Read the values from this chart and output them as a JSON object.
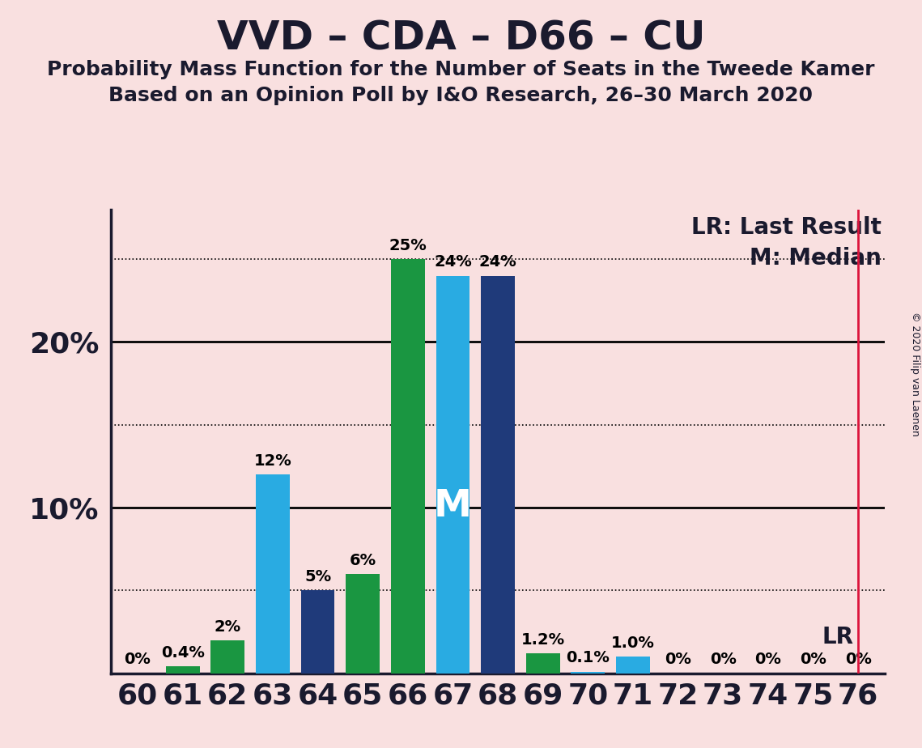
{
  "title": "VVD – CDA – D66 – CU",
  "subtitle1": "Probability Mass Function for the Number of Seats in the Tweede Kamer",
  "subtitle2": "Based on an Opinion Poll by I&O Research, 26–30 March 2020",
  "copyright": "© 2020 Filip van Laenen",
  "seats": [
    60,
    61,
    62,
    63,
    64,
    65,
    66,
    67,
    68,
    69,
    70,
    71,
    72,
    73,
    74,
    75,
    76
  ],
  "values": [
    0.0,
    0.4,
    2.0,
    12.0,
    5.0,
    6.0,
    25.0,
    24.0,
    24.0,
    1.2,
    0.1,
    1.0,
    0.0,
    0.0,
    0.0,
    0.0,
    0.0
  ],
  "labels": [
    "0%",
    "0.4%",
    "2%",
    "12%",
    "5%",
    "6%",
    "25%",
    "24%",
    "24%",
    "1.2%",
    "0.1%",
    "1.0%",
    "0%",
    "0%",
    "0%",
    "0%",
    "0%"
  ],
  "colors": [
    "#1a9641",
    "#1a9641",
    "#1a9641",
    "#29abe2",
    "#1f3a7a",
    "#1a9641",
    "#1a9641",
    "#29abe2",
    "#1f3a7a",
    "#1a9641",
    "#29abe2",
    "#29abe2",
    "#1f3a7a",
    "#1f3a7a",
    "#1f3a7a",
    "#1f3a7a",
    "#1f3a7a"
  ],
  "median_seat": 67,
  "last_result_seat": 76,
  "background_color": "#f9e0e0",
  "ylim": [
    0,
    28
  ],
  "xlim": [
    59.4,
    76.6
  ],
  "legend_lr": "LR: Last Result",
  "legend_m": "M: Median",
  "median_label": "M",
  "lr_label": "LR",
  "title_fontsize": 36,
  "subtitle_fontsize": 18,
  "bar_label_fontsize": 14,
  "legend_fontsize": 20,
  "ytick_fontsize": 26,
  "xtick_fontsize": 26,
  "dotted_grid_levels": [
    5,
    15,
    25
  ],
  "solid_grid_levels": [
    10,
    20
  ],
  "ytick_labeled": [
    10,
    20
  ],
  "copyright_fontsize": 9
}
